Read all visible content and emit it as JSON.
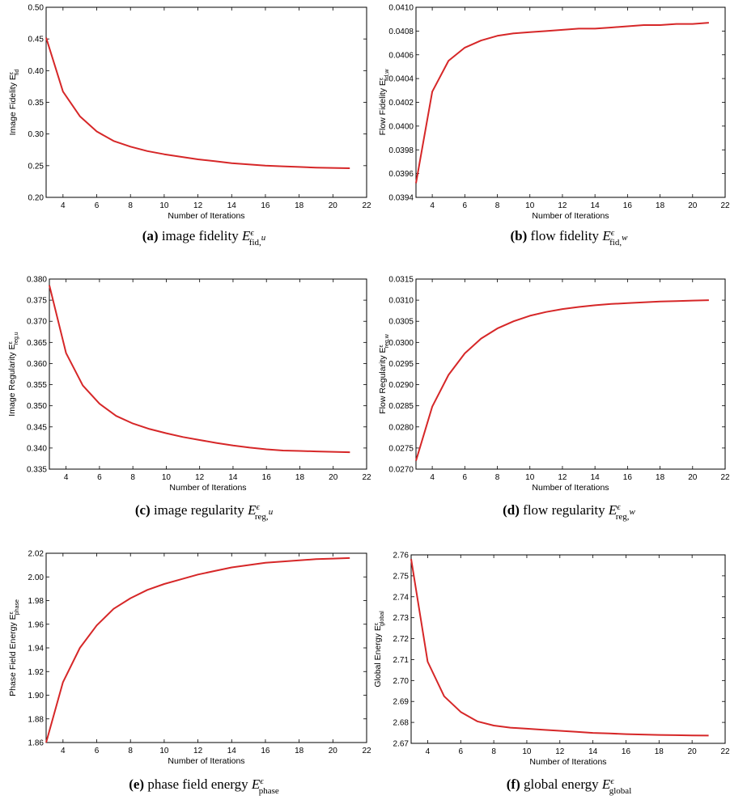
{
  "chart_data": [
    {
      "type": "line",
      "panel": "a",
      "xlabel": "Number of Iterations",
      "ylabel": "Image Fidelity E",
      "ylabel_sup": "ε",
      "ylabel_sub": "fid",
      "xlim": [
        3,
        22
      ],
      "ylim": [
        0.2,
        0.5
      ],
      "xticks": [
        "4",
        "6",
        "8",
        "10",
        "12",
        "14",
        "16",
        "18",
        "20",
        "22"
      ],
      "yticks": [
        "0.20",
        "0.25",
        "0.30",
        "0.35",
        "0.40",
        "0.45",
        "0.50"
      ],
      "x": [
        3,
        4,
        5,
        6,
        7,
        8,
        9,
        10,
        11,
        12,
        13,
        14,
        15,
        16,
        17,
        18,
        19,
        20,
        21
      ],
      "values": [
        0.452,
        0.367,
        0.328,
        0.304,
        0.289,
        0.28,
        0.273,
        0.268,
        0.264,
        0.26,
        0.257,
        0.254,
        0.252,
        0.25,
        0.249,
        0.248,
        0.247,
        0.2465,
        0.246
      ],
      "color": "#d62728",
      "caption": {
        "letter": "(a)",
        "text": "image fidelity",
        "sym": "E",
        "sup": "ϵ",
        "sub": "fid,",
        "subvar": "u"
      }
    },
    {
      "type": "line",
      "panel": "b",
      "xlabel": "Number of Iterations",
      "ylabel": "Flow Fidelity E",
      "ylabel_sup": "ε",
      "ylabel_sub": "fid,w",
      "xlim": [
        3,
        22
      ],
      "ylim": [
        0.0394,
        0.041
      ],
      "xticks": [
        "4",
        "6",
        "8",
        "10",
        "12",
        "14",
        "16",
        "18",
        "20",
        "22"
      ],
      "yticks": [
        "0.0394",
        "0.0396",
        "0.0398",
        "0.0400",
        "0.0402",
        "0.0404",
        "0.0406",
        "0.0408",
        "0.0410"
      ],
      "x": [
        3,
        4,
        5,
        6,
        7,
        8,
        9,
        10,
        11,
        12,
        13,
        14,
        15,
        16,
        17,
        18,
        19,
        20,
        21
      ],
      "values": [
        0.03952,
        0.04029,
        0.04055,
        0.04066,
        0.04072,
        0.04076,
        0.04078,
        0.04079,
        0.0408,
        0.04081,
        0.04082,
        0.04082,
        0.04083,
        0.04084,
        0.04085,
        0.04085,
        0.04086,
        0.04086,
        0.04087
      ],
      "color": "#d62728",
      "caption": {
        "letter": "(b)",
        "text": "flow fidelity",
        "sym": "E",
        "sup": "ϵ",
        "sub": "fid,",
        "subvar": "w"
      }
    },
    {
      "type": "line",
      "panel": "c",
      "xlabel": "Number of Iterations",
      "ylabel": "Image Regularity E",
      "ylabel_sup": "ε",
      "ylabel_sub": "reg,u",
      "xlim": [
        3,
        22
      ],
      "ylim": [
        0.335,
        0.38
      ],
      "xticks": [
        "4",
        "6",
        "8",
        "10",
        "12",
        "14",
        "16",
        "18",
        "20",
        "22"
      ],
      "yticks": [
        "0.335",
        "0.340",
        "0.345",
        "0.350",
        "0.355",
        "0.360",
        "0.365",
        "0.370",
        "0.375",
        "0.380"
      ],
      "x": [
        3,
        4,
        5,
        6,
        7,
        8,
        9,
        10,
        11,
        12,
        13,
        14,
        15,
        16,
        17,
        18,
        19,
        20,
        21
      ],
      "values": [
        0.3785,
        0.3625,
        0.3548,
        0.3505,
        0.3476,
        0.3458,
        0.3445,
        0.3435,
        0.3426,
        0.3419,
        0.3412,
        0.3406,
        0.3401,
        0.3397,
        0.3394,
        0.3393,
        0.3392,
        0.3391,
        0.339
      ],
      "color": "#d62728",
      "caption": {
        "letter": "(c)",
        "text": "image regularity",
        "sym": "E",
        "sup": "ϵ",
        "sub": "reg,",
        "subvar": "u"
      }
    },
    {
      "type": "line",
      "panel": "d",
      "xlabel": "Number of Iterations",
      "ylabel": "Flow Regularity E",
      "ylabel_sup": "ε",
      "ylabel_sub": "reg,w",
      "xlim": [
        3,
        22
      ],
      "ylim": [
        0.027,
        0.0315
      ],
      "xticks": [
        "4",
        "6",
        "8",
        "10",
        "12",
        "14",
        "16",
        "18",
        "20",
        "22"
      ],
      "yticks": [
        "0.0270",
        "0.0275",
        "0.0280",
        "0.0285",
        "0.0290",
        "0.0295",
        "0.0300",
        "0.0305",
        "0.0310",
        "0.0315"
      ],
      "x": [
        3,
        4,
        5,
        6,
        7,
        8,
        9,
        10,
        11,
        12,
        13,
        14,
        15,
        16,
        17,
        18,
        19,
        20,
        21
      ],
      "values": [
        0.0272,
        0.02848,
        0.02923,
        0.02974,
        0.03009,
        0.03033,
        0.0305,
        0.03063,
        0.03072,
        0.03079,
        0.03084,
        0.03088,
        0.03091,
        0.03093,
        0.03095,
        0.03097,
        0.03098,
        0.03099,
        0.031
      ],
      "color": "#d62728",
      "caption": {
        "letter": "(d)",
        "text": "flow regularity",
        "sym": "E",
        "sup": "ϵ",
        "sub": "reg,",
        "subvar": "w"
      }
    },
    {
      "type": "line",
      "panel": "e",
      "xlabel": "Number of Iterations",
      "ylabel": "Phase Field Energy E",
      "ylabel_sup": "ε",
      "ylabel_sub": "phase",
      "xlim": [
        3,
        22
      ],
      "ylim": [
        1.86,
        2.02
      ],
      "xticks": [
        "4",
        "6",
        "8",
        "10",
        "12",
        "14",
        "16",
        "18",
        "20",
        "22"
      ],
      "yticks": [
        "1.86",
        "1.88",
        "1.90",
        "1.92",
        "1.94",
        "1.96",
        "1.98",
        "2.00",
        "2.02"
      ],
      "x": [
        3,
        4,
        5,
        6,
        7,
        8,
        9,
        10,
        11,
        12,
        13,
        14,
        15,
        16,
        17,
        18,
        19,
        20,
        21
      ],
      "values": [
        1.86,
        1.911,
        1.94,
        1.959,
        1.973,
        1.982,
        1.989,
        1.994,
        1.998,
        2.002,
        2.005,
        2.008,
        2.01,
        2.012,
        2.013,
        2.014,
        2.015,
        2.0155,
        2.016
      ],
      "color": "#d62728",
      "caption": {
        "letter": "(e)",
        "text": "phase field energy",
        "sym": "E",
        "sup": "ϵ",
        "sub": "phase",
        "subvar": ""
      }
    },
    {
      "type": "line",
      "panel": "f",
      "xlabel": "Number of Iterations",
      "ylabel": "Global Energy E",
      "ylabel_sup": "ε",
      "ylabel_sub": "global",
      "xlim": [
        3,
        22
      ],
      "ylim": [
        2.67,
        2.76
      ],
      "xticks": [
        "4",
        "6",
        "8",
        "10",
        "12",
        "14",
        "16",
        "18",
        "20",
        "22"
      ],
      "yticks": [
        "2.67",
        "2.68",
        "2.69",
        "2.70",
        "2.71",
        "2.72",
        "2.73",
        "2.74",
        "2.75",
        "2.76"
      ],
      "x": [
        3,
        4,
        5,
        6,
        7,
        8,
        9,
        10,
        11,
        12,
        13,
        14,
        15,
        16,
        17,
        18,
        19,
        20,
        21
      ],
      "values": [
        2.758,
        2.709,
        2.6925,
        2.685,
        2.6805,
        2.6785,
        2.6775,
        2.677,
        2.6765,
        2.676,
        2.6755,
        2.675,
        2.6747,
        2.6744,
        2.6742,
        2.674,
        2.6739,
        2.6738,
        2.6737
      ],
      "color": "#d62728",
      "caption": {
        "letter": "(f)",
        "text": "global energy",
        "sym": "E",
        "sup": "ϵ",
        "sub": "global",
        "subvar": ""
      }
    }
  ]
}
